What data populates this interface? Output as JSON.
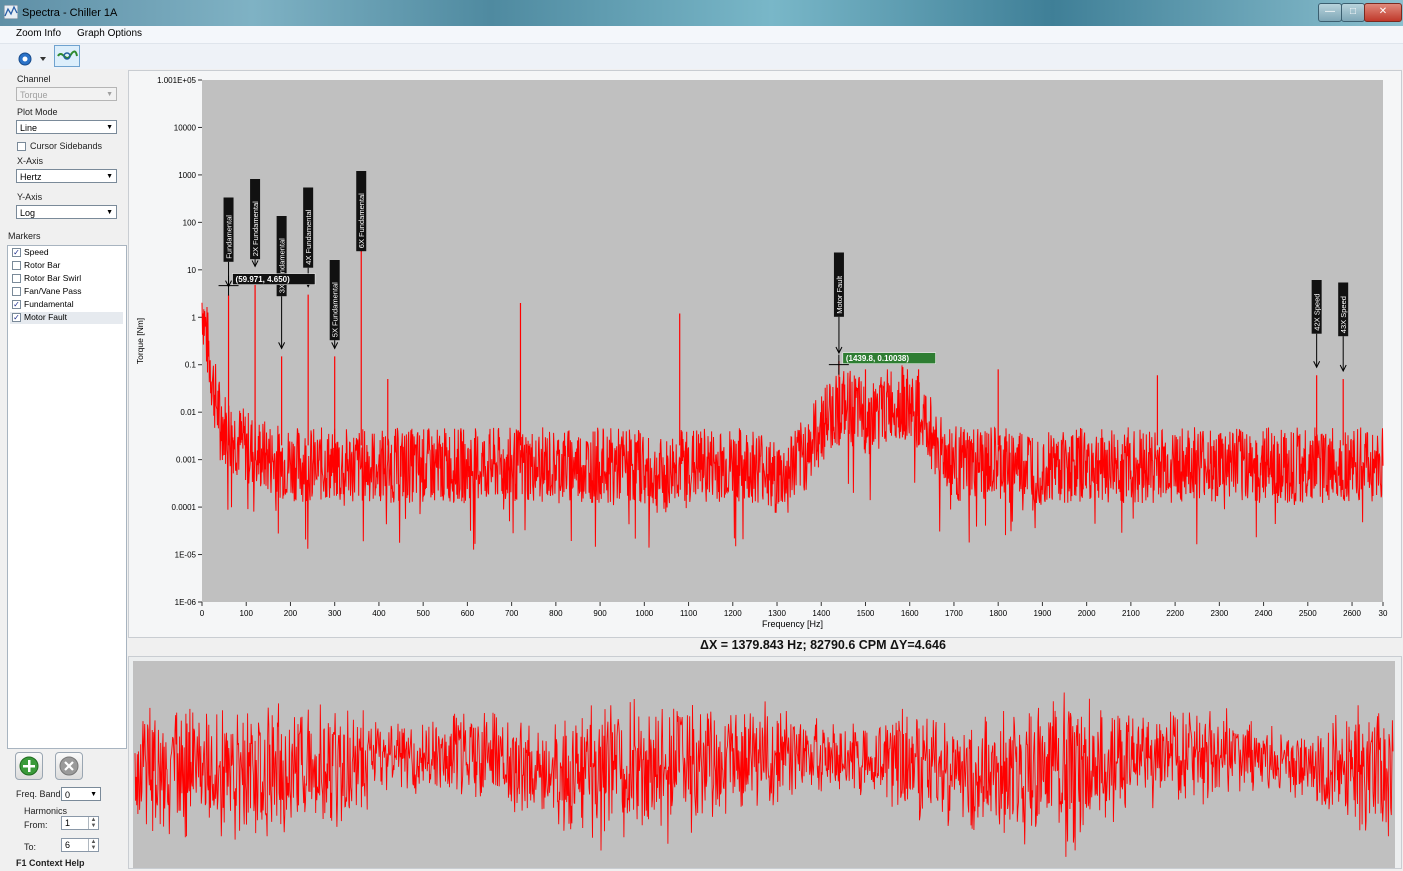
{
  "window": {
    "title": "Spectra - Chiller 1A"
  },
  "menu": [
    "Zoom Info",
    "Graph Options"
  ],
  "left_panel": {
    "channel_label": "Channel",
    "channel_value": "Torque",
    "plot_mode_label": "Plot Mode",
    "plot_mode_value": "Line",
    "cursor_sidebands_label": "Cursor Sidebands",
    "cursor_sidebands_checked": false,
    "x_axis_label": "X-Axis",
    "x_axis_value": "Hertz",
    "y_axis_label": "Y-Axis",
    "y_axis_value": "Log",
    "markers_label": "Markers",
    "markers": [
      {
        "label": "Speed",
        "checked": true
      },
      {
        "label": "Rotor Bar",
        "checked": false
      },
      {
        "label": "Rotor Bar Swirl",
        "checked": false
      },
      {
        "label": "Fan/Vane Pass",
        "checked": false
      },
      {
        "label": "Fundamental",
        "checked": true
      },
      {
        "label": "Motor Fault",
        "checked": true
      }
    ],
    "freq_band_label": "Freq. Band",
    "freq_band_value": "0",
    "harmonics_label": "Harmonics",
    "from_label": "From:",
    "from_value": "1",
    "to_label": "To:",
    "to_value": "6",
    "f1_label": "F1 Context Help"
  },
  "delta_readout": "ΔX = 1379.843 Hz; 82790.6 CPM ΔY=4.646",
  "chart_data": [
    {
      "type": "line",
      "title": "",
      "xlabel": "Frequency [Hz]",
      "ylabel": "Torque [Nm]",
      "xlim": [
        0,
        2670
      ],
      "ylim": [
        1e-06,
        100100
      ],
      "yscale": "log",
      "x_ticks": [
        "0",
        "100",
        "200",
        "300",
        "400",
        "500",
        "600",
        "700",
        "800",
        "900",
        "1000",
        "1100",
        "1200",
        "1300",
        "1400",
        "1500",
        "1600",
        "1700",
        "1800",
        "1900",
        "2000",
        "2100",
        "2200",
        "2300",
        "2400",
        "2500",
        "2600",
        "30"
      ],
      "y_ticks": [
        "1.001E+05",
        "10000",
        "1000",
        "100",
        "10",
        "1",
        "0.1",
        "0.01",
        "0.001",
        "0.0001",
        "1E-05",
        "1E-06"
      ],
      "colors": {
        "series": "#ff0000",
        "plot_bg": "#c0c0c0"
      },
      "background_level": 0.001,
      "peaks": [
        {
          "x": 60,
          "y": 3
        },
        {
          "x": 120,
          "y": 8
        },
        {
          "x": 180,
          "y": 0.15
        },
        {
          "x": 240,
          "y": 3
        },
        {
          "x": 300,
          "y": 0.15
        },
        {
          "x": 360,
          "y": 40
        },
        {
          "x": 420,
          "y": 0.05
        },
        {
          "x": 720,
          "y": 2
        },
        {
          "x": 1080,
          "y": 1.2
        },
        {
          "x": 1440,
          "y": 0.12
        },
        {
          "x": 1500,
          "y": 0.08
        },
        {
          "x": 1620,
          "y": 0.08
        },
        {
          "x": 1800,
          "y": 0.08
        },
        {
          "x": 2160,
          "y": 0.06
        },
        {
          "x": 2520,
          "y": 0.06
        },
        {
          "x": 2580,
          "y": 0.05
        }
      ],
      "markers": [
        {
          "label": "Fundamental",
          "x": 60
        },
        {
          "label": "2X Fundamental",
          "x": 120
        },
        {
          "label": "3X Fundamental",
          "x": 180
        },
        {
          "label": "4X Fundamental",
          "x": 240
        },
        {
          "label": "5X Fundamental",
          "x": 300
        },
        {
          "label": "6X Fundamental",
          "x": 360
        },
        {
          "label": "Motor Fault",
          "x": 1440
        },
        {
          "label": "42X Speed",
          "x": 2520
        },
        {
          "label": "43X Speed",
          "x": 2580
        }
      ],
      "cursors": [
        {
          "text": "(59.971, 4.650)",
          "x": 60,
          "y": 4.65
        },
        {
          "text": "(1439.8, 0.10038)",
          "x": 1439.8,
          "y": 0.10038
        }
      ]
    },
    {
      "type": "line",
      "title": "",
      "xlabel": "",
      "ylabel": "",
      "colors": {
        "series": "#ff0000",
        "plot_bg": "#c0c0c0"
      }
    }
  ]
}
